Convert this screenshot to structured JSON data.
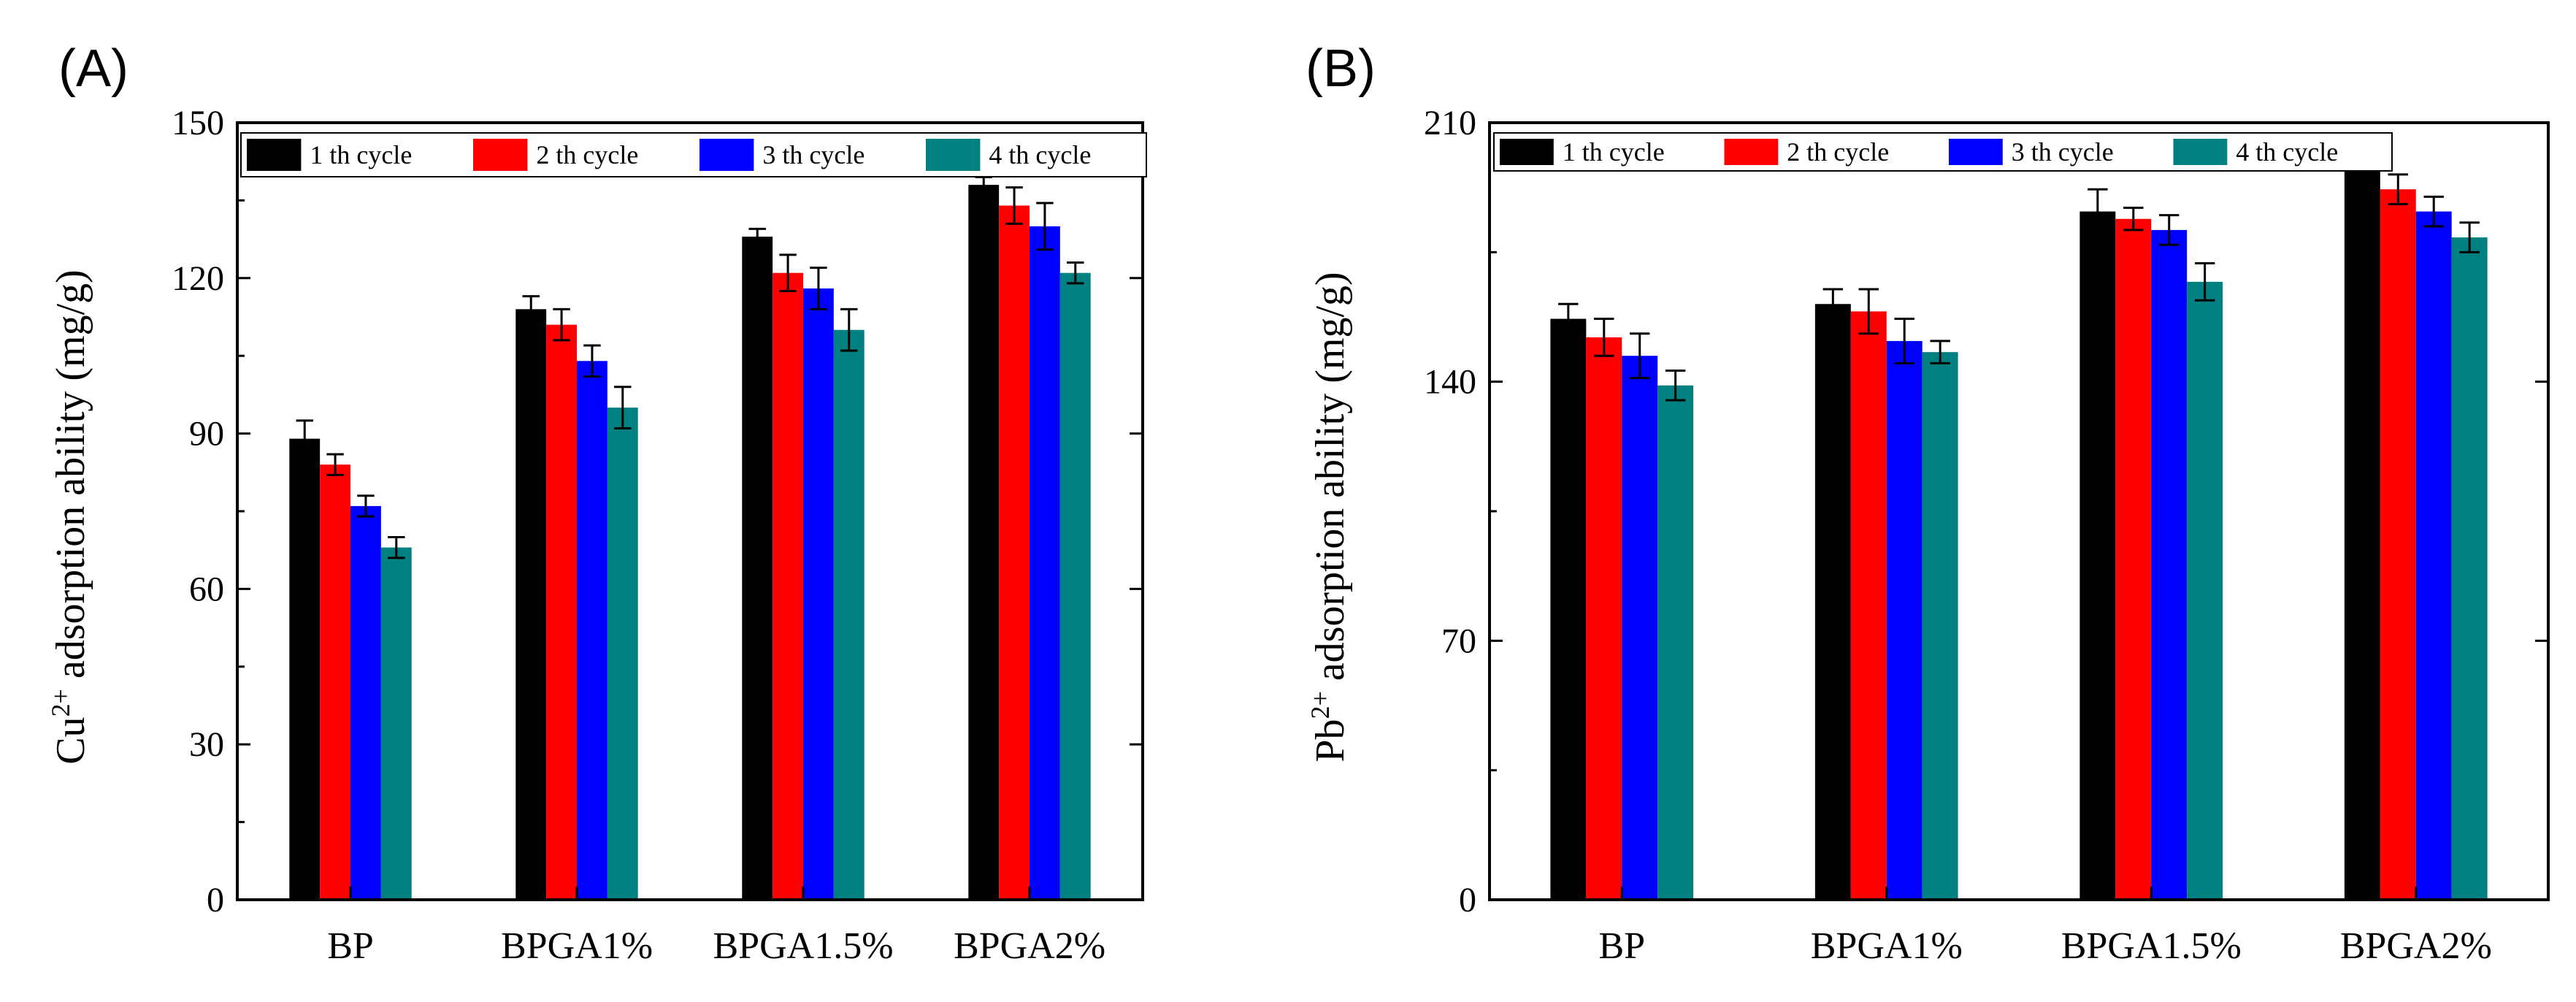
{
  "colors": {
    "series": [
      "#000000",
      "#ff0000",
      "#0000ff",
      "#008080"
    ],
    "axis": "#000000",
    "background": "#ffffff"
  },
  "chart_data": [
    {
      "type": "bar",
      "panel": "(A)",
      "title": "",
      "ylabel": {
        "prefix": "Cu",
        "superscript": "2+",
        "suffix": " adsorption ability (mg/g)"
      },
      "xlabel": "",
      "ylim": [
        0,
        150
      ],
      "yticks": [
        "0",
        "30",
        "60",
        "90",
        "120",
        "150"
      ],
      "categories": [
        "BP",
        "BPGA1%",
        "BPGA1.5%",
        "BPGA2%"
      ],
      "legend_position": "top",
      "series": [
        {
          "name": "1 th cycle",
          "values": [
            89,
            114,
            128,
            138
          ],
          "errors": [
            3.5,
            2.5,
            1.5,
            1.5
          ]
        },
        {
          "name": "2 th cycle",
          "values": [
            84,
            111,
            121,
            134
          ],
          "errors": [
            2,
            3,
            3.5,
            3.5
          ]
        },
        {
          "name": "3 th cycle",
          "values": [
            76,
            104,
            118,
            130
          ],
          "errors": [
            2,
            3,
            4,
            4.5
          ]
        },
        {
          "name": "4 th cycle",
          "values": [
            68,
            95,
            110,
            121
          ],
          "errors": [
            2,
            4,
            4,
            2
          ]
        }
      ]
    },
    {
      "type": "bar",
      "panel": "(B)",
      "title": "",
      "ylabel": {
        "prefix": "Pb",
        "superscript": "2+",
        "suffix": " adsorption ability (mg/g)"
      },
      "xlabel": "",
      "ylim": [
        0,
        210
      ],
      "yticks": [
        "0",
        "70",
        "140",
        "210"
      ],
      "categories": [
        "BP",
        "BPGA1%",
        "BPGA1.5%",
        "BPGA2%"
      ],
      "legend_position": "top",
      "series": [
        {
          "name": "1 th cycle",
          "values": [
            157,
            161,
            186,
            200
          ],
          "errors": [
            4,
            4,
            6,
            4
          ]
        },
        {
          "name": "2 th cycle",
          "values": [
            152,
            159,
            184,
            192
          ],
          "errors": [
            5,
            6,
            3,
            4
          ]
        },
        {
          "name": "3 th cycle",
          "values": [
            147,
            151,
            181,
            186
          ],
          "errors": [
            6,
            6,
            4,
            4
          ]
        },
        {
          "name": "4 th cycle",
          "values": [
            139,
            148,
            167,
            179
          ],
          "errors": [
            4,
            3,
            5,
            4
          ]
        }
      ]
    }
  ]
}
